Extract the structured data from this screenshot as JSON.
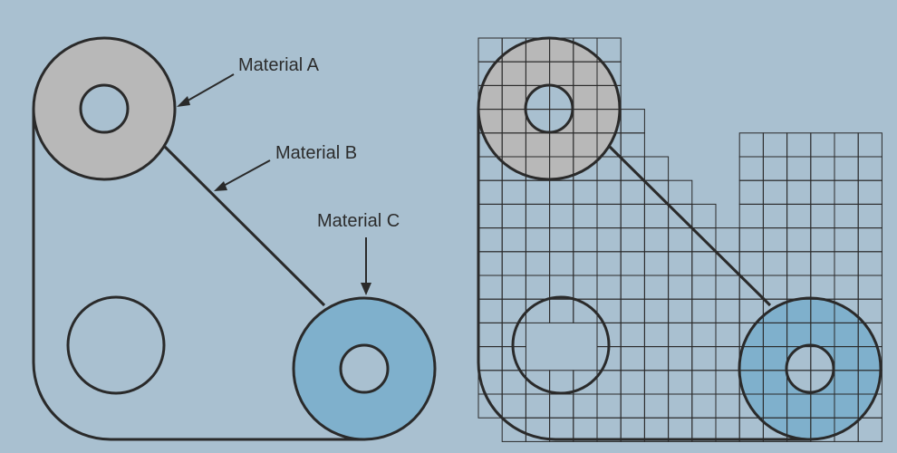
{
  "labels": {
    "material_a": "Material A",
    "material_b": "Material B",
    "material_c": "Material C"
  },
  "colors": {
    "background": "#a9c0d0",
    "material_a_fill": "#b8b8b8",
    "material_c_fill": "#7fb0cc",
    "outline": "#2a2a2a",
    "grid_line": "#2a2a2a"
  }
}
